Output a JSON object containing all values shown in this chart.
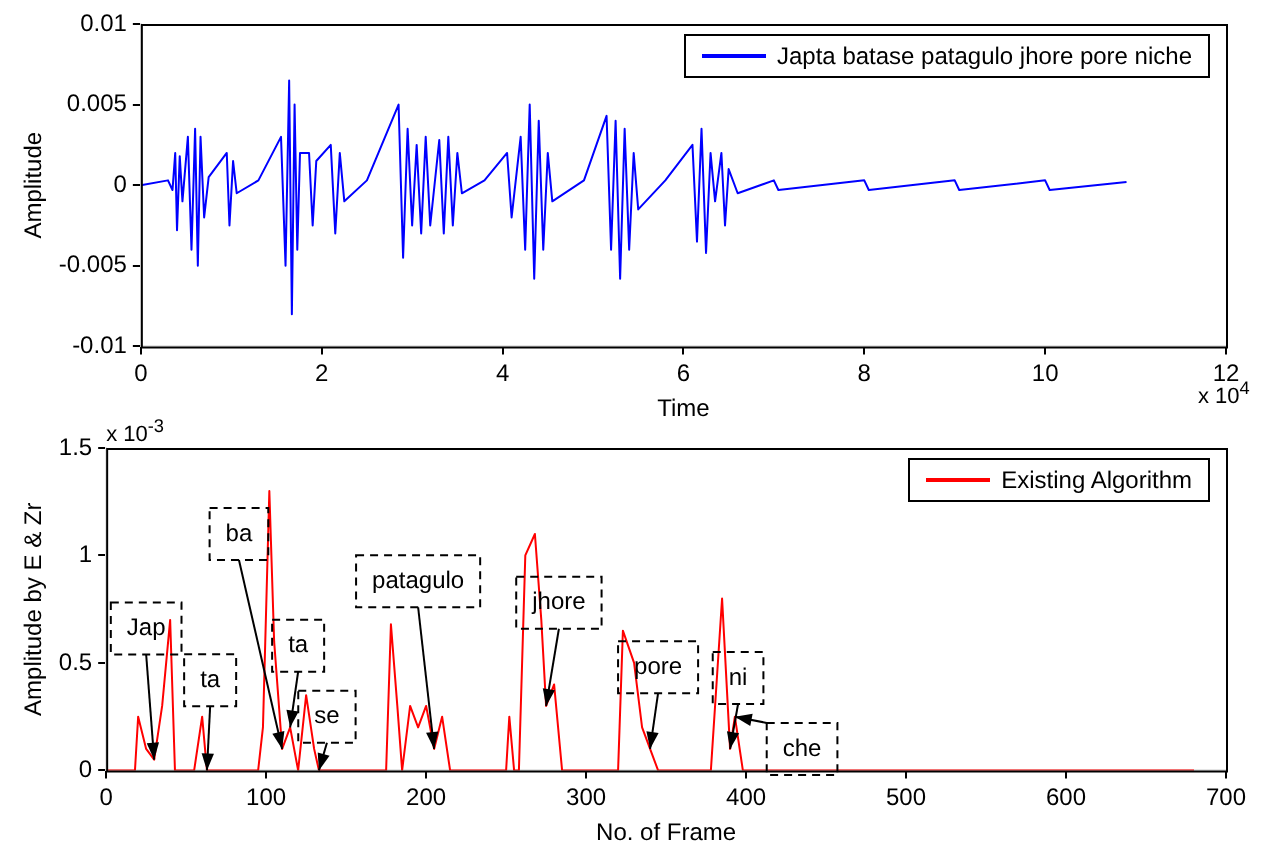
{
  "chart_data": [
    {
      "type": "line",
      "xlabel": "Time",
      "ylabel": "Amplitude",
      "legend": "top right",
      "grid": false,
      "xlim": [
        0,
        12
      ],
      "xticks": [
        0,
        2,
        4,
        6,
        8,
        10,
        12
      ],
      "ylim": [
        -0.01,
        0.01
      ],
      "yticks": [
        -0.01,
        -0.005,
        0,
        0.005,
        0.01
      ],
      "annotations": [
        "x 10$^{4}$"
      ],
      "series": [
        {
          "name": "Japta batase patagulo jhore pore niche",
          "color": "#0000ff",
          "x": [
            0,
            0.3,
            0.35,
            0.38,
            0.4,
            0.43,
            0.46,
            0.52,
            0.56,
            0.6,
            0.63,
            0.66,
            0.7,
            0.75,
            0.95,
            0.98,
            1.02,
            1.06,
            1.3,
            1.55,
            1.6,
            1.64,
            1.67,
            1.7,
            1.73,
            1.76,
            1.86,
            1.9,
            1.94,
            2.1,
            2.15,
            2.2,
            2.25,
            2.5,
            2.85,
            2.9,
            2.95,
            3.0,
            3.05,
            3.1,
            3.15,
            3.2,
            3.3,
            3.35,
            3.4,
            3.45,
            3.5,
            3.55,
            3.8,
            4.05,
            4.1,
            4.2,
            4.25,
            4.3,
            4.35,
            4.4,
            4.45,
            4.5,
            4.55,
            4.9,
            5.15,
            5.2,
            5.25,
            5.3,
            5.35,
            5.4,
            5.45,
            5.5,
            5.8,
            6.1,
            6.15,
            6.2,
            6.25,
            6.3,
            6.35,
            6.42,
            6.46,
            6.5,
            6.6,
            7,
            7.05,
            8,
            8.05,
            9,
            9.05,
            10,
            10.05,
            10.9
          ],
          "values": [
            0,
            0.0003,
            -0.0003,
            0.002,
            -0.0028,
            0.0018,
            -0.001,
            0.003,
            -0.004,
            0.0035,
            -0.005,
            0.003,
            -0.002,
            0.0005,
            0.002,
            -0.0025,
            0.0015,
            -0.0005,
            0.0003,
            0.003,
            -0.005,
            0.0065,
            -0.008,
            0.005,
            -0.004,
            0.002,
            0.002,
            -0.0025,
            0.0015,
            0.0025,
            -0.003,
            0.002,
            -0.001,
            0.0003,
            0.005,
            -0.0045,
            0.0035,
            -0.0025,
            0.0025,
            -0.003,
            0.003,
            -0.0025,
            0.0028,
            -0.003,
            0.003,
            -0.0025,
            0.002,
            -0.0005,
            0.0003,
            0.002,
            -0.002,
            0.003,
            -0.004,
            0.005,
            -0.0058,
            0.004,
            -0.004,
            0.002,
            -0.001,
            0.0003,
            0.0043,
            -0.004,
            0.004,
            -0.0058,
            0.0035,
            -0.004,
            0.002,
            -0.0015,
            0.0003,
            0.0025,
            -0.0035,
            0.0035,
            -0.0042,
            0.002,
            -0.001,
            0.002,
            -0.0025,
            0.001,
            -0.0005,
            0.0003,
            -0.0003,
            0.0003,
            -0.0003,
            0.0003,
            -0.0003,
            0.0003,
            -0.0003,
            0.0002
          ]
        }
      ]
    },
    {
      "type": "line",
      "xlabel": "No. of Frame",
      "ylabel": "Amplitude by E & Zr",
      "legend": "top right",
      "grid": false,
      "xlim": [
        0,
        700
      ],
      "xticks": [
        0,
        100,
        200,
        300,
        400,
        500,
        600,
        700
      ],
      "ylim": [
        0,
        1.5
      ],
      "yticks": [
        0,
        0.5,
        1,
        1.5
      ],
      "annotations": [
        "x 10$^{-3}$",
        {
          "text": "Jap",
          "x": 30,
          "y": 0.05
        },
        {
          "text": "ta",
          "x": 63,
          "y": 0
        },
        {
          "text": "ba",
          "x": 110,
          "y": 0.1
        },
        {
          "text": "ta",
          "x": 115,
          "y": 0.2
        },
        {
          "text": "se",
          "x": 133,
          "y": 0
        },
        {
          "text": "patagulo",
          "x": 205,
          "y": 0.1
        },
        {
          "text": "jhore",
          "x": 275,
          "y": 0.3
        },
        {
          "text": "pore",
          "x": 340,
          "y": 0.1
        },
        {
          "text": "ni",
          "x": 390,
          "y": 0.1
        },
        {
          "text": "che",
          "x": 393,
          "y": 0.25
        }
      ],
      "series": [
        {
          "name": "Existing Algorithm",
          "color": "#ff0000",
          "x": [
            0,
            18,
            20,
            25,
            30,
            35,
            40,
            43,
            55,
            60,
            63,
            95,
            98,
            102,
            105,
            110,
            115,
            120,
            125,
            130,
            133,
            175,
            178,
            182,
            185,
            190,
            195,
            200,
            205,
            210,
            215,
            250,
            252,
            255,
            258,
            262,
            268,
            272,
            275,
            280,
            285,
            320,
            323,
            330,
            335,
            340,
            345,
            378,
            385,
            390,
            393,
            398,
            680
          ],
          "values": [
            0,
            0,
            0.25,
            0.1,
            0.05,
            0.3,
            0.7,
            0,
            0,
            0.25,
            0,
            0,
            0.2,
            1.3,
            0.6,
            0.1,
            0.2,
            0,
            0.35,
            0.1,
            0,
            0,
            0.68,
            0.3,
            0,
            0.3,
            0.2,
            0.3,
            0.1,
            0.25,
            0,
            0,
            0.25,
            0,
            0,
            1.0,
            1.1,
            0.7,
            0.3,
            0.4,
            0,
            0,
            0.65,
            0.5,
            0.2,
            0.1,
            0,
            0,
            0.8,
            0.1,
            0.25,
            0,
            0
          ]
        }
      ]
    }
  ]
}
